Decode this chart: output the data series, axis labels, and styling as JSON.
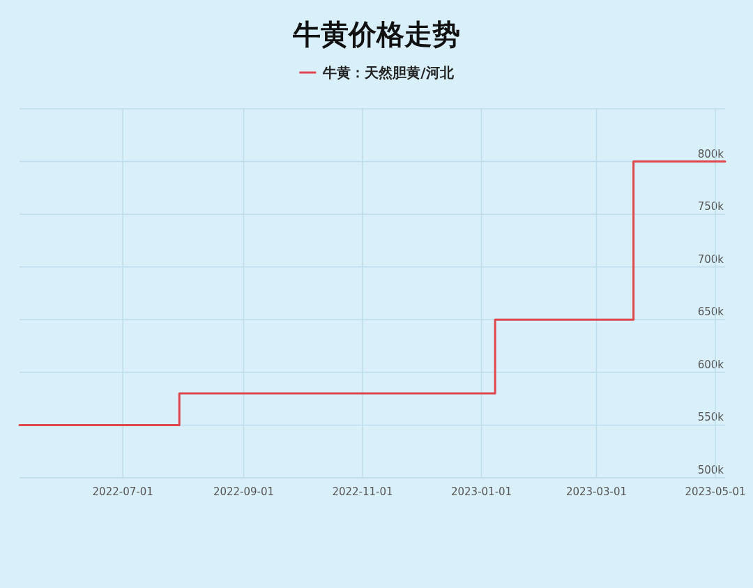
{
  "chart_data": {
    "type": "step",
    "title": "牛黄价格走势",
    "x": [
      "2022-05-09",
      "2022-07-30",
      "2023-01-08",
      "2023-03-20",
      "2023-05-06"
    ],
    "series": [
      {
        "name": "牛黄：天然胆黄/河北",
        "color": "#e0474c",
        "values": [
          550000,
          580000,
          650000,
          800000,
          800000
        ]
      }
    ],
    "xlim": [
      "2022-05-09",
      "2023-05-06"
    ],
    "xticks": [
      "2022-07-01",
      "2022-09-01",
      "2022-11-01",
      "2023-01-01",
      "2023-03-01",
      "2023-05-01"
    ],
    "ylim": [
      500000,
      850000
    ],
    "yticks": [
      {
        "value": 500000,
        "label": "500k"
      },
      {
        "value": 550000,
        "label": "550k"
      },
      {
        "value": 600000,
        "label": "600k"
      },
      {
        "value": 650000,
        "label": "650k"
      },
      {
        "value": 700000,
        "label": "700k"
      },
      {
        "value": 750000,
        "label": "750k"
      },
      {
        "value": 800000,
        "label": "800k"
      },
      {
        "value": 850000,
        "label": null
      }
    ],
    "grid": true,
    "legend": "top",
    "marker": "none",
    "line_style": "solid"
  }
}
